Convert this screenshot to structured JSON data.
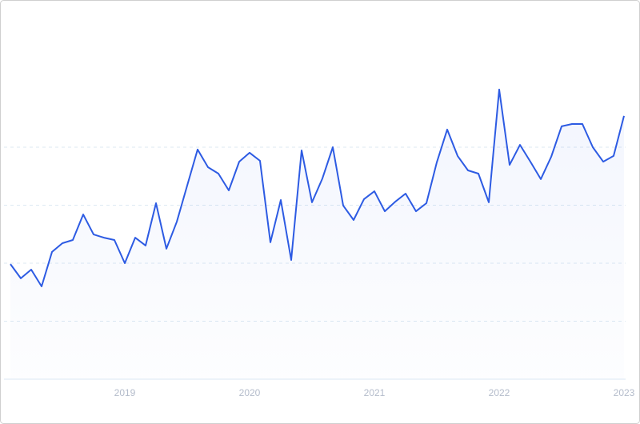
{
  "chart_data": {
    "type": "line",
    "categories": [
      null,
      null,
      null,
      null,
      null,
      null,
      null,
      null,
      null,
      null,
      null,
      "2019",
      null,
      null,
      null,
      null,
      null,
      null,
      null,
      null,
      null,
      null,
      null,
      "2020",
      null,
      null,
      null,
      null,
      null,
      null,
      null,
      null,
      null,
      null,
      null,
      "2021",
      null,
      null,
      null,
      null,
      null,
      null,
      null,
      null,
      null,
      null,
      null,
      "2022",
      null,
      null,
      null,
      null,
      null,
      null,
      null,
      null,
      null,
      null,
      null,
      "2023"
    ],
    "series": [
      {
        "color": "#2d5be3",
        "values": [
          39.7,
          34.8,
          37.8,
          32.0,
          43.9,
          46.9,
          48.0,
          56.8,
          49.9,
          48.8,
          48.0,
          40.0,
          48.8,
          46.1,
          60.7,
          45.0,
          54.3,
          66.8,
          79.2,
          73.1,
          70.9,
          65.1,
          75.0,
          78.1,
          75.3,
          47.2,
          61.8,
          41.1,
          78.9,
          61.0,
          69.2,
          80.0,
          59.9,
          54.9,
          62.1,
          64.8,
          57.9,
          61.2,
          64.0,
          57.9,
          60.7,
          74.8,
          86.1,
          77.0,
          72.0,
          70.9,
          61.0,
          99.9,
          73.9,
          80.8,
          75.0,
          69.0,
          76.7,
          87.2,
          88.0,
          88.0,
          80.0,
          75.0,
          77.0,
          90.8
        ]
      }
    ],
    "ylim": [
      0,
      100
    ],
    "gridlines": [
      0,
      20,
      40,
      60,
      80
    ],
    "grid": true
  }
}
